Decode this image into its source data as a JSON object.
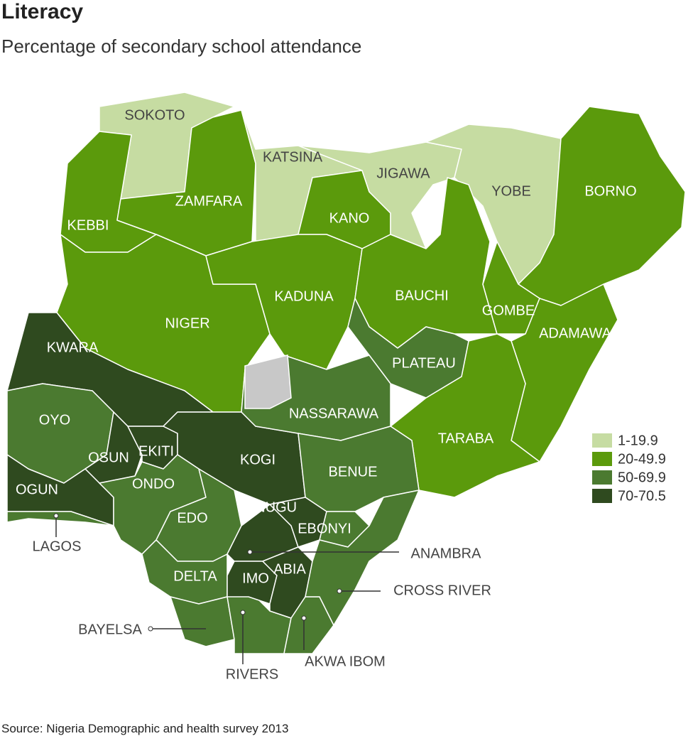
{
  "header": {
    "title": "Literacy",
    "subtitle": "Percentage of secondary school attendance"
  },
  "legend": [
    {
      "label": "1-19.9",
      "color": "#c6dca2"
    },
    {
      "label": "20-49.9",
      "color": "#5b9a0c"
    },
    {
      "label": "50-69.9",
      "color": "#4b7a30"
    },
    {
      "label": "70-70.5",
      "color": "#2f4a1f"
    }
  ],
  "states": [
    {
      "name": "SOKOTO",
      "color": "#c6dca2"
    },
    {
      "name": "KEBBI",
      "color": "#5b9a0c"
    },
    {
      "name": "ZAMFARA",
      "color": "#5b9a0c"
    },
    {
      "name": "KATSINA",
      "color": "#c6dca2"
    },
    {
      "name": "KANO",
      "color": "#5b9a0c"
    },
    {
      "name": "JIGAWA",
      "color": "#c6dca2"
    },
    {
      "name": "YOBE",
      "color": "#c6dca2"
    },
    {
      "name": "BORNO",
      "color": "#5b9a0c"
    },
    {
      "name": "NIGER",
      "color": "#5b9a0c"
    },
    {
      "name": "KADUNA",
      "color": "#5b9a0c"
    },
    {
      "name": "BAUCHI",
      "color": "#5b9a0c"
    },
    {
      "name": "GOMBE",
      "color": "#5b9a0c"
    },
    {
      "name": "ADAMAWA",
      "color": "#5b9a0c"
    },
    {
      "name": "TARABA",
      "color": "#5b9a0c"
    },
    {
      "name": "PLATEAU",
      "color": "#4b7a30"
    },
    {
      "name": "KWARA",
      "color": "#2f4a1f"
    },
    {
      "name": "OYO",
      "color": "#4b7a30"
    },
    {
      "name": "OSUN",
      "color": "#2f4a1f"
    },
    {
      "name": "EKITI",
      "color": "#2f4a1f"
    },
    {
      "name": "KOGI",
      "color": "#2f4a1f"
    },
    {
      "name": "NASSARAWA",
      "color": "#4b7a30"
    },
    {
      "name": "BENUE",
      "color": "#4b7a30"
    },
    {
      "name": "OGUN",
      "color": "#2f4a1f"
    },
    {
      "name": "LAGOS",
      "color": "#4b7a30"
    },
    {
      "name": "ONDO",
      "color": "#4b7a30"
    },
    {
      "name": "EDO",
      "color": "#4b7a30"
    },
    {
      "name": "DELTA",
      "color": "#4b7a30"
    },
    {
      "name": "BAYELSA",
      "color": "#4b7a30"
    },
    {
      "name": "RIVERS",
      "color": "#4b7a30"
    },
    {
      "name": "ANAMBRA",
      "color": "#2f4a1f"
    },
    {
      "name": "ENUGU",
      "color": "#2f4a1f"
    },
    {
      "name": "EBONYI",
      "color": "#4b7a30"
    },
    {
      "name": "IMO",
      "color": "#2f4a1f"
    },
    {
      "name": "ABIA",
      "color": "#2f4a1f"
    },
    {
      "name": "AKWA IBOM",
      "color": "#4b7a30"
    },
    {
      "name": "CROSS RIVER",
      "color": "#4b7a30"
    }
  ],
  "source": "Source: Nigeria Demographic and health survey 2013"
}
